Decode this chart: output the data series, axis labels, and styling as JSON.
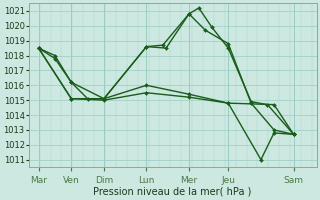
{
  "bg_color": "#cce8e0",
  "grid_color": "#99ccc2",
  "line_color": "#1a5c1a",
  "xlabel": "Pression niveau de la mer( hPa )",
  "ylim": [
    1010.5,
    1021.5
  ],
  "yticks": [
    1011,
    1012,
    1013,
    1014,
    1015,
    1016,
    1017,
    1018,
    1019,
    1020,
    1021
  ],
  "xlim": [
    -0.3,
    8.5
  ],
  "x_labels": [
    "Mar",
    "Ven",
    "Dim",
    "Lun",
    "Mer",
    "Jeu",
    "Sam"
  ],
  "x_tick_pos": [
    0.0,
    1.0,
    2.0,
    3.3,
    4.6,
    5.8,
    7.8
  ],
  "line1_x": [
    0.0,
    0.5,
    1.0,
    2.0,
    3.3,
    3.8,
    4.6,
    4.9,
    5.3,
    5.8,
    6.5,
    7.0,
    7.8
  ],
  "line1_y": [
    1018.5,
    1017.8,
    1016.2,
    1015.1,
    1018.6,
    1018.7,
    1020.8,
    1021.2,
    1019.9,
    1018.5,
    1014.9,
    1014.7,
    1012.7
  ],
  "line2_x": [
    0.0,
    0.5,
    1.0,
    1.5,
    2.0,
    3.3,
    3.9,
    4.6,
    5.1,
    5.8,
    6.5,
    7.2,
    7.8
  ],
  "line2_y": [
    1018.5,
    1018.0,
    1016.2,
    1015.1,
    1015.1,
    1018.6,
    1018.5,
    1020.8,
    1019.7,
    1018.8,
    1014.8,
    1013.0,
    1012.7
  ],
  "line3_x": [
    0.0,
    1.0,
    2.0,
    3.3,
    4.6,
    5.8,
    7.2,
    7.8
  ],
  "line3_y": [
    1018.5,
    1015.1,
    1015.1,
    1016.0,
    1015.4,
    1014.8,
    1014.7,
    1012.7
  ],
  "line4_x": [
    0.0,
    1.0,
    2.0,
    3.3,
    4.6,
    5.8,
    6.8,
    7.2,
    7.8
  ],
  "line4_y": [
    1018.5,
    1015.1,
    1015.0,
    1015.5,
    1015.2,
    1014.8,
    1011.0,
    1012.8,
    1012.7
  ],
  "linewidth": 1.0,
  "markersize": 2.0,
  "xlabel_fontsize": 7,
  "tick_fontsize": 6,
  "xtick_fontsize": 6.5
}
